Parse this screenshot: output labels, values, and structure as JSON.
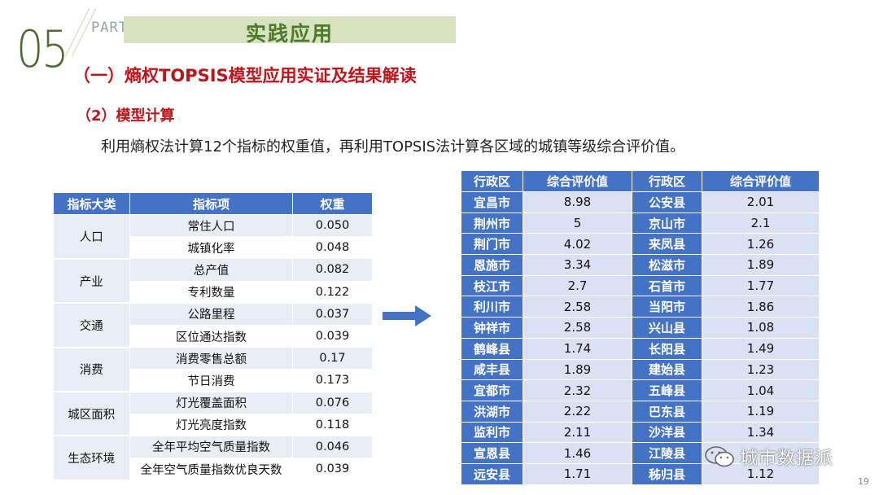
{
  "header": {
    "section_number": "05",
    "part_label": "PART",
    "section_title": "实践应用"
  },
  "heading1": "（一）熵权TOPSIS模型应用实证及结果解读",
  "heading2": "（2）模型计算",
  "description": "利用熵权法计算12个指标的权重值，再利用TOPSIS法计算各区域的城镇等级综合评价值。",
  "left_table": {
    "headers": [
      "指标大类",
      "指标项",
      "权重"
    ],
    "groups": [
      {
        "category": "人口",
        "rows": [
          {
            "item": "常住人口",
            "weight": "0.050"
          },
          {
            "item": "城镇化率",
            "weight": "0.048"
          }
        ]
      },
      {
        "category": "产业",
        "rows": [
          {
            "item": "总产值",
            "weight": "0.082"
          },
          {
            "item": "专利数量",
            "weight": "0.122"
          }
        ]
      },
      {
        "category": "交通",
        "rows": [
          {
            "item": "公路里程",
            "weight": "0.037"
          },
          {
            "item": "区位通达指数",
            "weight": "0.039"
          }
        ]
      },
      {
        "category": "消费",
        "rows": [
          {
            "item": "消费零售总额",
            "weight": "0.17"
          },
          {
            "item": "节日消费",
            "weight": "0.173"
          }
        ]
      },
      {
        "category": "城区面积",
        "rows": [
          {
            "item": "灯光覆盖面积",
            "weight": "0.076"
          },
          {
            "item": "灯光亮度指数",
            "weight": "0.118"
          }
        ]
      },
      {
        "category": "生态环境",
        "rows": [
          {
            "item": "全年平均空气质量指数",
            "weight": "0.046"
          },
          {
            "item": "全年空气质量指数优良天数",
            "weight": "0.039"
          }
        ]
      }
    ]
  },
  "right_table": {
    "headers": [
      "行政区",
      "综合评价值",
      "行政区",
      "综合评价值"
    ],
    "rows": [
      [
        "宜昌市",
        "8.98",
        "公安县",
        "2.01"
      ],
      [
        "荆州市",
        "5",
        "京山市",
        "2.1"
      ],
      [
        "荆门市",
        "4.02",
        "来凤县",
        "1.26"
      ],
      [
        "恩施市",
        "3.34",
        "松滋市",
        "1.89"
      ],
      [
        "枝江市",
        "2.7",
        "石首市",
        "1.77"
      ],
      [
        "利川市",
        "2.58",
        "当阳市",
        "1.86"
      ],
      [
        "钟祥市",
        "2.58",
        "兴山县",
        "1.08"
      ],
      [
        "鹤峰县",
        "1.74",
        "长阳县",
        "1.49"
      ],
      [
        "咸丰县",
        "1.89",
        "建始县",
        "1.23"
      ],
      [
        "宜都市",
        "2.32",
        "五峰县",
        "1.04"
      ],
      [
        "洪湖市",
        "2.22",
        "巴东县",
        "1.19"
      ],
      [
        "监利市",
        "2.11",
        "沙洋县",
        "1.34"
      ],
      [
        "宣恩县",
        "1.46",
        "江陵县",
        ""
      ],
      [
        "远安县",
        "1.71",
        "秭归县",
        "1.12"
      ]
    ]
  },
  "watermark": {
    "text": "城市数据派",
    "icon": "wechat-icon"
  },
  "page_number": "19",
  "colors": {
    "accent_green": "#4e7a2a",
    "title_red": "#c0141b",
    "table_blue": "#4472c4",
    "table_light": "#d9e1f2"
  }
}
